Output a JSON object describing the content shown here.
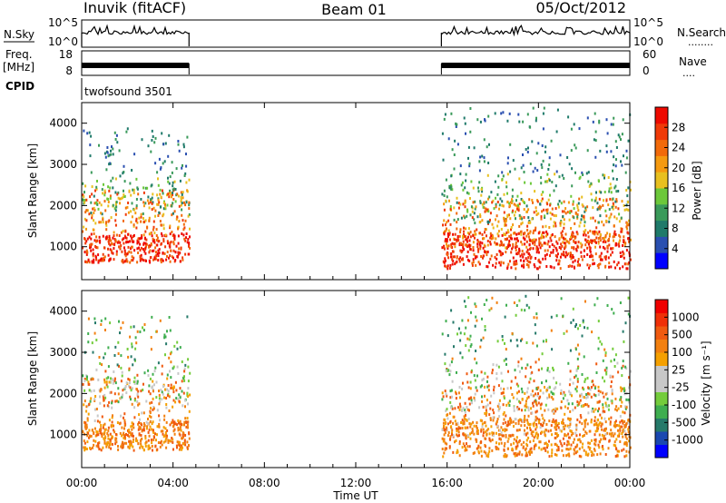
{
  "header": {
    "station": "Inuvik (fitACF)",
    "beam": "Beam 01",
    "date": "05/Oct/2012"
  },
  "side_labels": {
    "nsky": "N.Sky",
    "freq": "Freq.",
    "freq_unit": "[MHz]",
    "cpid": "CPID",
    "nsearch": "N.Search",
    "nsearch_dots": "........",
    "nave": "Nave",
    "nave_dots": "...."
  },
  "cpid_value": "twofsound 3501",
  "x_axis": {
    "label": "Time UT",
    "ticks": [
      "00:00",
      "04:00",
      "08:00",
      "12:00",
      "16:00",
      "20:00",
      "00:00"
    ]
  },
  "colors": {
    "power": [
      "#0000ff",
      "#2a4fb0",
      "#1f7a6a",
      "#3a9a5a",
      "#6cc83a",
      "#e8c020",
      "#f59a10",
      "#f26a0a",
      "#f03a08",
      "#ee0a00"
    ],
    "velocity": [
      "#0000ff",
      "#1a48b0",
      "#267a6a",
      "#3fae50",
      "#74cc3c",
      "#c8c8c8",
      "#c8c8c8",
      "#f5a000",
      "#f28010",
      "#f05a10",
      "#f03008",
      "#f00000"
    ]
  },
  "chart_data": [
    {
      "type": "line",
      "panel": "N.Sky / N.Search",
      "x_range_hours": [
        0,
        24
      ],
      "ylim_left": [
        "10^0",
        "10^5"
      ],
      "ylim_right": [
        "10^0",
        "10^5"
      ],
      "left_tick_labels": [
        "10^5",
        "10^0"
      ],
      "right_tick_labels": [
        "10^5",
        "10^0"
      ],
      "data_intervals_hours": [
        [
          0.0,
          4.7
        ],
        [
          15.75,
          24.0
        ]
      ]
    },
    {
      "type": "line",
      "panel": "Freq. / Nave",
      "x_range_hours": [
        0,
        24
      ],
      "left_tick_labels": [
        "18",
        "8"
      ],
      "right_tick_labels": [
        "60",
        "0"
      ],
      "data_intervals_hours": [
        [
          0.0,
          4.7
        ],
        [
          15.75,
          24.0
        ]
      ]
    },
    {
      "type": "heatmap",
      "panel": "Power",
      "xlabel": "",
      "ylabel": "Slant Range [km]",
      "x_range_hours": [
        0,
        24
      ],
      "ylim": [
        200,
        4500
      ],
      "y_ticks": [
        "1000",
        "2000",
        "3000",
        "4000"
      ],
      "colorbar": {
        "label": "Power [dB]",
        "ticks": [
          "4",
          "8",
          "12",
          "16",
          "20",
          "24",
          "28"
        ],
        "range": [
          0,
          30
        ]
      },
      "data_intervals_hours": [
        [
          0.0,
          4.7
        ],
        [
          15.75,
          24.0
        ]
      ]
    },
    {
      "type": "heatmap",
      "panel": "Velocity",
      "xlabel": "Time UT",
      "ylabel": "Slant Range [km]",
      "x_range_hours": [
        0,
        24
      ],
      "ylim": [
        200,
        4500
      ],
      "y_ticks": [
        "1000",
        "2000",
        "3000",
        "4000"
      ],
      "colorbar": {
        "label": "Velocity [m s⁻¹]",
        "ticks": [
          "1000",
          "500",
          "100",
          "25",
          "-25",
          "-100",
          "-500",
          "-1000"
        ]
      },
      "data_intervals_hours": [
        [
          0.0,
          4.7
        ],
        [
          15.75,
          24.0
        ]
      ]
    }
  ]
}
